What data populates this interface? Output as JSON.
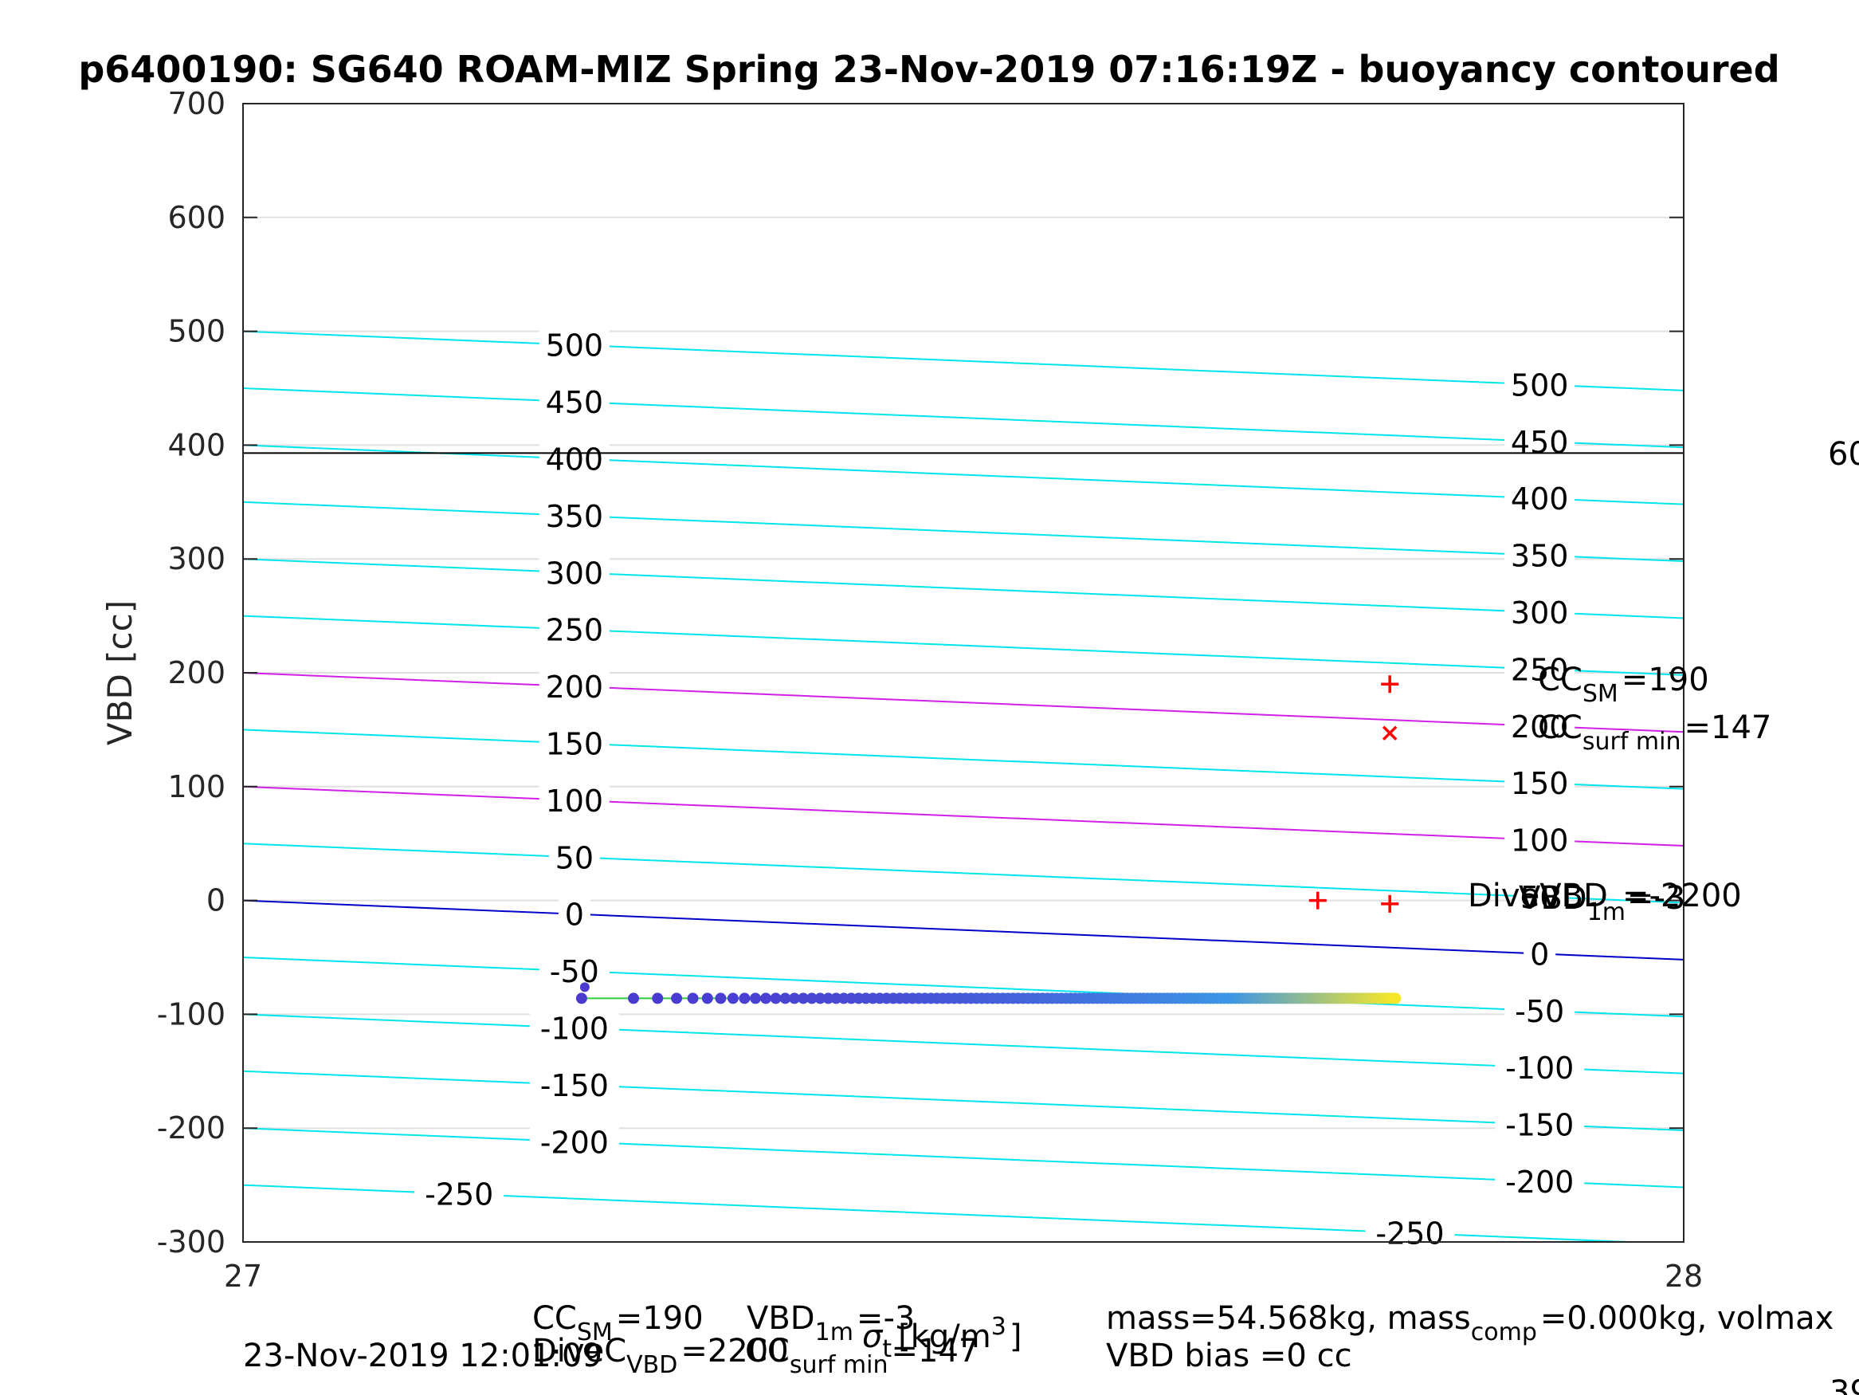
{
  "chart_data": {
    "type": "scatter",
    "title": "p6400190: SG640 ROAM-MIZ Spring 23-Nov-2019 07:16:19Z - buoyancy contoured",
    "ylabel": "VBD [cc]",
    "xlabel_main": "σ",
    "xlabel_sub": "t",
    "xlabel_unit": "[kg/m",
    "xlabel_unit_sup": "3",
    "xlabel_unit_close": "]",
    "xlim": [
      27,
      28
    ],
    "ylim": [
      -300,
      700
    ],
    "xticks": [
      27,
      28
    ],
    "yticks": [
      -300,
      -200,
      -100,
      0,
      100,
      200,
      300,
      400,
      500,
      600,
      700
    ],
    "grid": true,
    "buoyancy_contours": {
      "levels": [
        -250,
        -200,
        -150,
        -100,
        -50,
        0,
        50,
        100,
        150,
        200,
        250,
        300,
        350,
        400,
        450,
        500
      ],
      "highlight_levels": [
        100,
        200
      ],
      "highlight_color": "#d020e8",
      "zero_level_color": "#0000c8",
      "color": "#00e5ee",
      "slope_cc_per_unit": -52,
      "left_label_x": 27.23,
      "right_label_x": 27.9,
      "left_labels": [
        "500",
        "450",
        "400",
        "350",
        "300",
        "250",
        "200",
        "150",
        "100",
        "50",
        "0",
        "-50",
        "-100",
        "-150",
        "-200"
      ],
      "right_labels": [
        "500",
        "450",
        "400",
        "350",
        "300",
        "250",
        "200",
        "150",
        "100",
        "50",
        "0",
        "-50",
        "-100",
        "-150",
        "-200"
      ],
      "label_250_left": "-250",
      "label_250_right": "-250"
    },
    "reference_line": {
      "y": 393,
      "color": "#000000"
    },
    "markers": [
      {
        "shape": "plus",
        "x": 27.796,
        "y": 190,
        "color": "#ff0000"
      },
      {
        "shape": "x",
        "x": 27.796,
        "y": 147,
        "color": "#ff0000"
      },
      {
        "shape": "plus",
        "x": 27.746,
        "y": 0,
        "color": "#ff0000"
      },
      {
        "shape": "plus",
        "x": 27.796,
        "y": -3,
        "color": "#ff0000"
      }
    ],
    "observations": {
      "x_start": 27.235,
      "x_end": 27.8,
      "y": -86,
      "color_start": "#4a3ad0",
      "color_end": "#f5e62a"
    },
    "annotations": {
      "cc_sm_label": "CC",
      "cc_sm_sub": "SM",
      "cc_sm_value": "=190",
      "cc_surf_label": "CC",
      "cc_surf_sub": "surf min",
      "cc_surf_value": "=147",
      "vbd1m_overlap": "DiveVBD",
      "vbd1m_label": "VBD",
      "vbd1m_sub": "1m",
      "vbd1m_value": "=-3",
      "vbd1m_value2": "=-2200",
      "right_clipped": "60"
    },
    "footer": {
      "line1_cc": "CC",
      "line1_cc_sub": "SM",
      "line1_cc_val": "=190",
      "line1_vbd": "VBD",
      "line1_vbd_sub": "1m",
      "line1_vbd_val": "=-3",
      "line2_date": "23-Nov-2019 12:01:09",
      "line2_dive": "DiveC",
      "line2_dive_sub": "VBD",
      "line2_dive_val": "=2200",
      "line2_ccsurf": "CC",
      "line2_ccsurf_sub": "surf min",
      "line2_ccsurf_val": "=147",
      "mass_text": "mass=54.568kg, mass",
      "mass_sub": "comp",
      "mass_rest": "=0.000kg, volmax",
      "bias_text": "VBD bias =0 cc",
      "clipped_bottom": "39"
    }
  }
}
